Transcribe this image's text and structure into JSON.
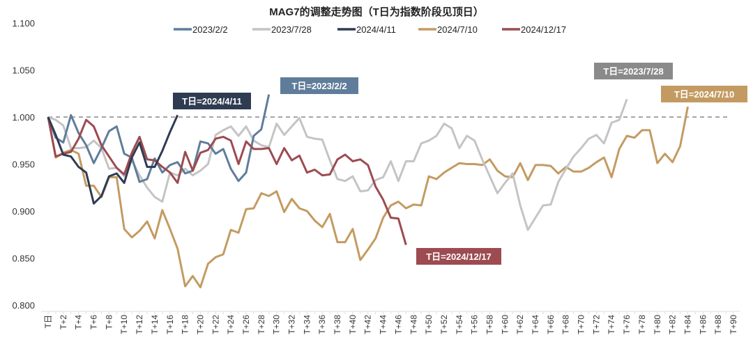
{
  "chart_data": {
    "type": "line",
    "title": "MAG7的调整走势图（T日为指数阶段见顶日）",
    "xlabel": "",
    "ylabel": "",
    "x_tick_labels": [
      "T日",
      "T+2",
      "T+4",
      "T+6",
      "T+8",
      "T+10",
      "T+12",
      "T+14",
      "T+16",
      "T+18",
      "T+20",
      "T+22",
      "T+24",
      "T+26",
      "T+28",
      "T+30",
      "T+32",
      "T+34",
      "T+36",
      "T+38",
      "T+40",
      "T+42",
      "T+44",
      "T+46",
      "T+48",
      "T+50",
      "T+52",
      "T+54",
      "T+56",
      "T+58",
      "T+60",
      "T+62",
      "T+64",
      "T+66",
      "T+68",
      "T+70",
      "T+72",
      "T+74",
      "T+76",
      "T+78",
      "T+80",
      "T+82",
      "T+84",
      "T+86",
      "T+88",
      "T+90"
    ],
    "x_range": [
      0,
      90
    ],
    "ylim": [
      0.8,
      1.1
    ],
    "y_ticks": [
      "0.800",
      "0.850",
      "0.900",
      "0.950",
      "1.000",
      "1.050",
      "1.100"
    ],
    "reference_line": 1.0,
    "grid": false,
    "legend_position": "top",
    "series": [
      {
        "name": "2023/2/2",
        "color": "#5f7d9a",
        "callout": "T日=2023/2/2",
        "callout_color": "#5f7d9a",
        "values": [
          1.0,
          0.978,
          0.973,
          1.002,
          0.983,
          0.97,
          0.951,
          0.967,
          0.985,
          0.99,
          0.961,
          0.957,
          0.931,
          0.934,
          0.956,
          0.941,
          0.949,
          0.952,
          0.94,
          0.943,
          0.974,
          0.972,
          0.961,
          0.966,
          0.945,
          0.932,
          0.941,
          0.98,
          0.987,
          1.024
        ]
      },
      {
        "name": "2023/7/28",
        "color": "#c4c4c4",
        "callout": "T日=2023/7/28",
        "callout_color": "#8a8a8a",
        "values": [
          1.0,
          0.997,
          0.991,
          0.967,
          0.967,
          0.968,
          0.975,
          0.967,
          0.945,
          0.946,
          0.937,
          0.954,
          0.938,
          0.925,
          0.915,
          0.91,
          0.941,
          0.938,
          0.945,
          0.938,
          0.943,
          0.95,
          0.981,
          0.986,
          0.99,
          0.98,
          0.99,
          0.975,
          0.97,
          0.968,
          0.993,
          0.981,
          0.99,
          0.999,
          0.979,
          0.977,
          0.976,
          0.954,
          0.934,
          0.932,
          0.937,
          0.921,
          0.922,
          0.933,
          0.936,
          0.953,
          0.932,
          0.953,
          0.953,
          0.972,
          0.975,
          0.98,
          0.993,
          0.988,
          0.967,
          0.98,
          0.975,
          0.955,
          0.937,
          0.919,
          0.93,
          0.94,
          0.906,
          0.88,
          0.893,
          0.906,
          0.907,
          0.931,
          0.945,
          0.958,
          0.967,
          0.977,
          0.981,
          0.972,
          0.994,
          0.997,
          1.019
        ]
      },
      {
        "name": "2024/4/11",
        "color": "#2f3b51",
        "callout": "T日=2024/4/11",
        "callout_color": "#2f3b51",
        "values": [
          1.0,
          0.981,
          0.96,
          0.958,
          0.947,
          0.941,
          0.908,
          0.916,
          0.937,
          0.94,
          0.93,
          0.957,
          0.973,
          0.947,
          0.947,
          0.964,
          0.984,
          1.002
        ]
      },
      {
        "name": "2024/7/10",
        "color": "#c39b62",
        "callout": "T日=2024/7/10",
        "callout_color": "#c39b62",
        "values": [
          1.0,
          0.957,
          0.962,
          0.965,
          0.961,
          0.927,
          0.927,
          0.915,
          0.936,
          0.936,
          0.881,
          0.872,
          0.879,
          0.889,
          0.871,
          0.901,
          0.881,
          0.86,
          0.82,
          0.831,
          0.819,
          0.844,
          0.851,
          0.854,
          0.88,
          0.877,
          0.902,
          0.903,
          0.919,
          0.916,
          0.921,
          0.899,
          0.913,
          0.903,
          0.9,
          0.89,
          0.883,
          0.897,
          0.867,
          0.867,
          0.881,
          0.848,
          0.859,
          0.871,
          0.893,
          0.906,
          0.91,
          0.903,
          0.907,
          0.906,
          0.937,
          0.934,
          0.941,
          0.946,
          0.951,
          0.95,
          0.95,
          0.949,
          0.955,
          0.943,
          0.937,
          0.936,
          0.951,
          0.933,
          0.949,
          0.949,
          0.948,
          0.94,
          0.947,
          0.942,
          0.942,
          0.946,
          0.952,
          0.957,
          0.936,
          0.966,
          0.98,
          0.978,
          0.986,
          0.986,
          0.951,
          0.961,
          0.952,
          0.969,
          1.011
        ]
      },
      {
        "name": "2024/12/17",
        "color": "#9c4b51",
        "callout": "T日=2024/12/17",
        "callout_color": "#9c4b51",
        "values": [
          1.0,
          0.958,
          0.961,
          0.963,
          0.977,
          0.997,
          0.99,
          0.97,
          0.958,
          0.946,
          0.939,
          0.962,
          0.979,
          0.955,
          0.954,
          0.947,
          0.941,
          0.93,
          0.963,
          0.943,
          0.962,
          0.965,
          0.977,
          0.979,
          0.975,
          0.95,
          0.974,
          0.966,
          0.966,
          0.967,
          0.95,
          0.967,
          0.954,
          0.959,
          0.941,
          0.944,
          0.938,
          0.939,
          0.955,
          0.96,
          0.953,
          0.955,
          0.949,
          0.926,
          0.912,
          0.893,
          0.892,
          0.864
        ]
      }
    ]
  }
}
